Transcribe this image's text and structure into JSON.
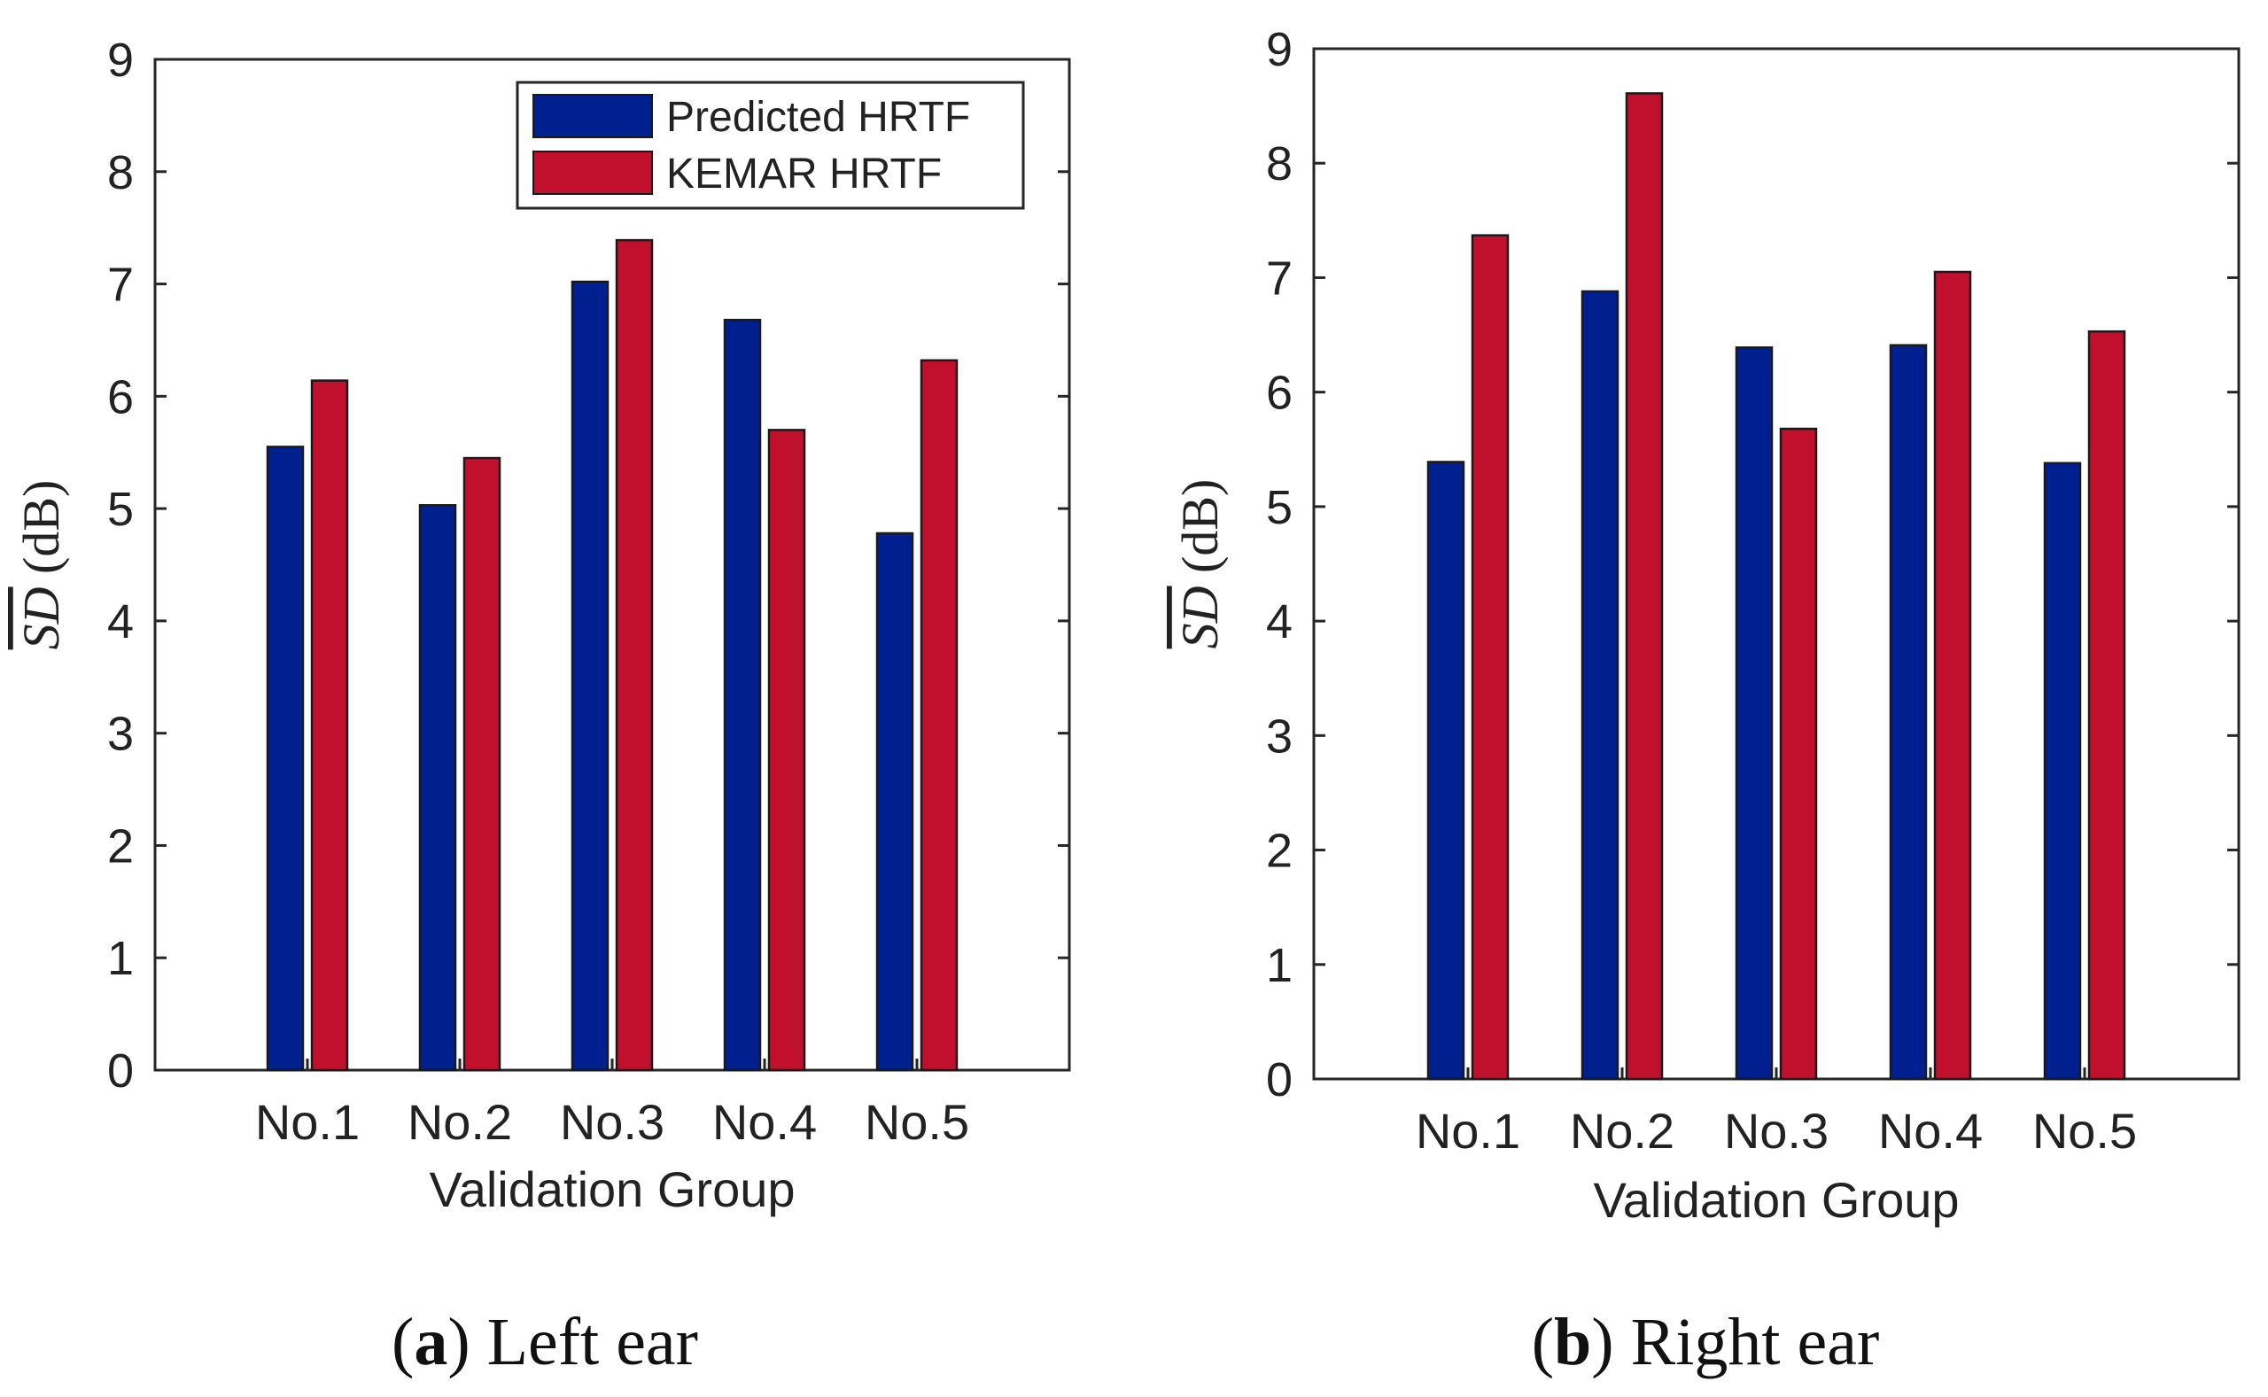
{
  "chart_data": [
    {
      "type": "bar",
      "panel": "a",
      "caption": {
        "letter": "a",
        "text": "Left ear"
      },
      "categories": [
        "No.1",
        "No.2",
        "No.3",
        "No.4",
        "No.5"
      ],
      "series": [
        {
          "name": "Predicted HRTF",
          "color": "#00208f",
          "values": [
            5.55,
            5.03,
            7.02,
            6.68,
            4.78
          ]
        },
        {
          "name": "KEMAR HRTF",
          "color": "#c0102e",
          "values": [
            6.14,
            5.45,
            7.39,
            5.7,
            6.32
          ]
        }
      ],
      "xlabel": "Validation Group",
      "ylabel": {
        "symbol": "SD",
        "unit": "(dB)"
      },
      "ylim": [
        0,
        9
      ],
      "yticks": [
        "0",
        "1",
        "2",
        "3",
        "4",
        "5",
        "6",
        "7",
        "8",
        "9"
      ],
      "legend": true,
      "legend_position": "top-right"
    },
    {
      "type": "bar",
      "panel": "b",
      "caption": {
        "letter": "b",
        "text": "Right ear"
      },
      "categories": [
        "No.1",
        "No.2",
        "No.3",
        "No.4",
        "No.5"
      ],
      "series": [
        {
          "name": "Predicted HRTF",
          "color": "#00208f",
          "values": [
            5.39,
            6.88,
            6.39,
            6.41,
            5.38
          ]
        },
        {
          "name": "KEMAR HRTF",
          "color": "#c0102e",
          "values": [
            7.37,
            8.61,
            5.68,
            7.05,
            6.53
          ]
        }
      ],
      "xlabel": "Validation Group",
      "ylabel": {
        "symbol": "SD",
        "unit": "(dB)"
      },
      "ylim": [
        0,
        9
      ],
      "yticks": [
        "0",
        "1",
        "2",
        "3",
        "4",
        "5",
        "6",
        "7",
        "8",
        "9"
      ],
      "legend": false
    }
  ]
}
